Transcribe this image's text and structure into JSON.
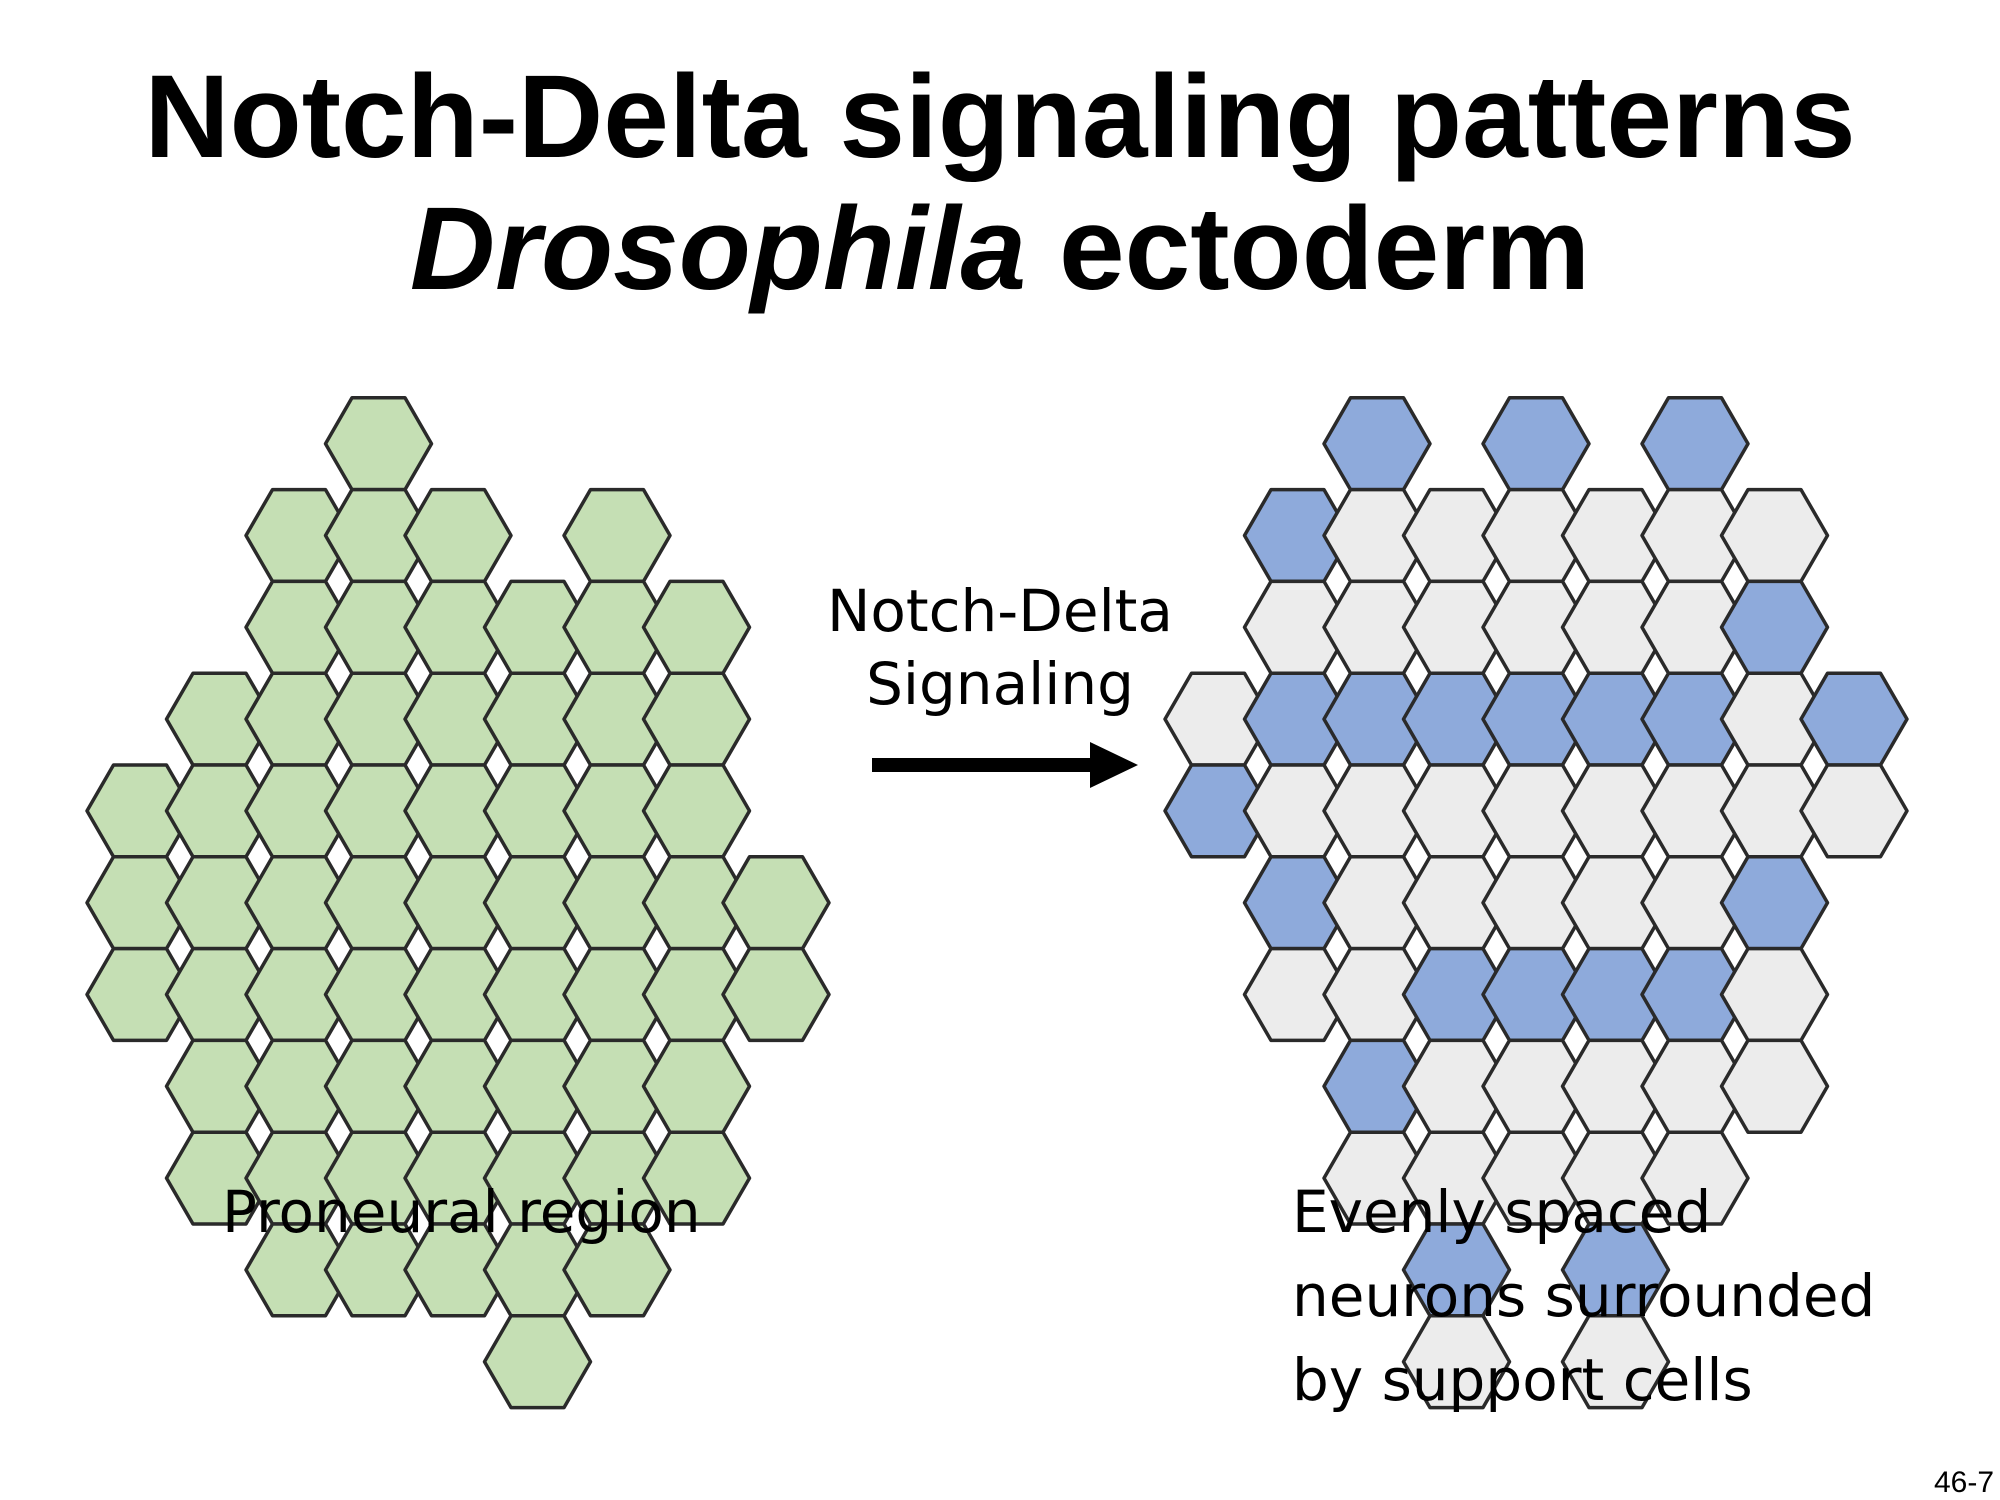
{
  "title": {
    "line1": "Notch-Delta signaling patterns",
    "line2_italic": "Drosophila",
    "line2_rest": " ectoderm"
  },
  "arrow_label": {
    "line1": "Notch-Delta",
    "line2": "Signaling"
  },
  "left_caption": "Proneural region",
  "right_caption": {
    "line1": "Evenly spaced",
    "line2": "neurons surrounded",
    "line3": "by support cells"
  },
  "slide_number": "46-7",
  "colors": {
    "proneural": "#c5dfb4",
    "neuron": "#8eaadb",
    "support": "#ececec",
    "outline": "#2a2a2a"
  },
  "left_sheet": {
    "cell_type": "proneural",
    "columns": [
      {
        "rows": [
          1,
          6
        ]
      },
      {
        "rows": [
          -1,
          10
        ]
      },
      {
        "rows": [
          -5,
          12
        ]
      },
      {
        "rows": [
          -7,
          12
        ]
      },
      {
        "rows": [
          -5,
          12
        ]
      },
      {
        "rows": [
          -3,
          14
        ]
      },
      {
        "rows": [
          -5,
          12
        ]
      },
      {
        "rows": [
          -3,
          10
        ]
      },
      {
        "rows": [
          3,
          6
        ]
      }
    ]
  },
  "right_sheet": {
    "columns": [
      {
        "cells": [
          "support",
          "neuron"
        ]
      },
      {
        "cells": [
          "neuron",
          "support",
          "neuron",
          "support",
          "neuron",
          "support"
        ]
      },
      {
        "cells": [
          "neuron",
          "support",
          "support",
          "neuron",
          "support",
          "support",
          "support",
          "neuron",
          "support"
        ]
      },
      {
        "cells": [
          "support",
          "support",
          "neuron",
          "support",
          "support",
          "neuron",
          "support",
          "support",
          "neuron",
          "support"
        ]
      },
      {
        "cells": [
          "neuron",
          "support",
          "support",
          "neuron",
          "support",
          "support",
          "neuron",
          "support",
          "support"
        ]
      },
      {
        "cells": [
          "support",
          "support",
          "neuron",
          "support",
          "support",
          "neuron",
          "support",
          "support",
          "neuron",
          "support"
        ]
      },
      {
        "cells": [
          "neuron",
          "support",
          "support",
          "neuron",
          "support",
          "support",
          "neuron",
          "support",
          "support"
        ]
      },
      {
        "cells": [
          "support",
          "neuron",
          "support",
          "support",
          "neuron",
          "support",
          "support"
        ]
      },
      {
        "cells": [
          "neuron",
          "support"
        ]
      }
    ]
  }
}
